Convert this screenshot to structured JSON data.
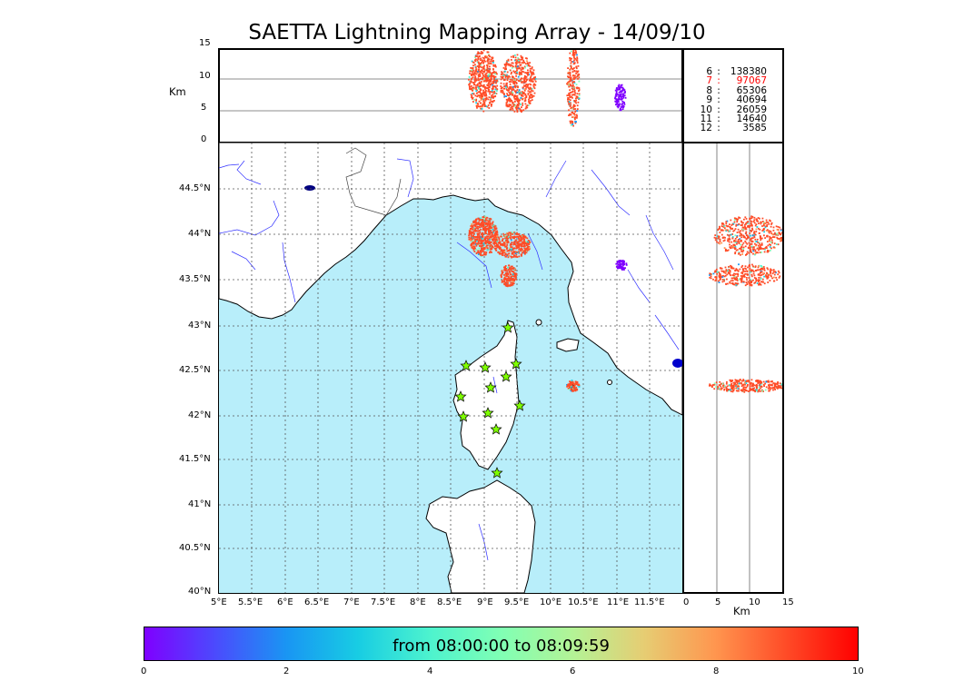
{
  "title": "SAETTA Lightning Mapping Array - 14/09/10",
  "top_panel": {
    "y_label": "Km",
    "y_ticks": [
      "15",
      "10",
      "5",
      "0"
    ]
  },
  "right_panel": {
    "x_label": "Km",
    "x_ticks": [
      "0",
      "5",
      "10",
      "15"
    ]
  },
  "map": {
    "lat_ticks": [
      "44.5°N",
      "44°N",
      "43.5°N",
      "43°N",
      "42.5°N",
      "42°N",
      "41.5°N",
      "41°N",
      "40.5°N",
      "40°N"
    ],
    "lon_ticks": [
      "5°E",
      "5.5°E",
      "6°E",
      "6.5°E",
      "7°E",
      "7.5°E",
      "8°E",
      "8.5°E",
      "9°E",
      "9.5°E",
      "10°E",
      "10.5°E",
      "11°E",
      "11.5°E"
    ],
    "sea_color": "#b8eefa",
    "land_color": "#ffffff",
    "station_icon": "star-icon",
    "station_color": "#7fff00"
  },
  "stats": [
    {
      "key": "6",
      "value": "138380",
      "color": "#000000"
    },
    {
      "key": "7",
      "value": "97067",
      "color": "#ff0000"
    },
    {
      "key": "8",
      "value": "65306",
      "color": "#000000"
    },
    {
      "key": "9",
      "value": "40694",
      "color": "#000000"
    },
    {
      "key": "10",
      "value": "26059",
      "color": "#000000"
    },
    {
      "key": "11",
      "value": "14640",
      "color": "#000000"
    },
    {
      "key": "12",
      "value": "3585",
      "color": "#000000"
    }
  ],
  "colorbar": {
    "label": "from 08:00:00 to 08:09:59",
    "ticks": [
      "0",
      "2",
      "4",
      "6",
      "8",
      "10"
    ],
    "colors": [
      "#7f00ff",
      "#4b4bfd",
      "#1996f3",
      "#18cde3",
      "#4df3ce",
      "#80ffb4",
      "#b3f396",
      "#e6cd73",
      "#ff964f",
      "#ff4b27",
      "#ff0000"
    ]
  }
}
